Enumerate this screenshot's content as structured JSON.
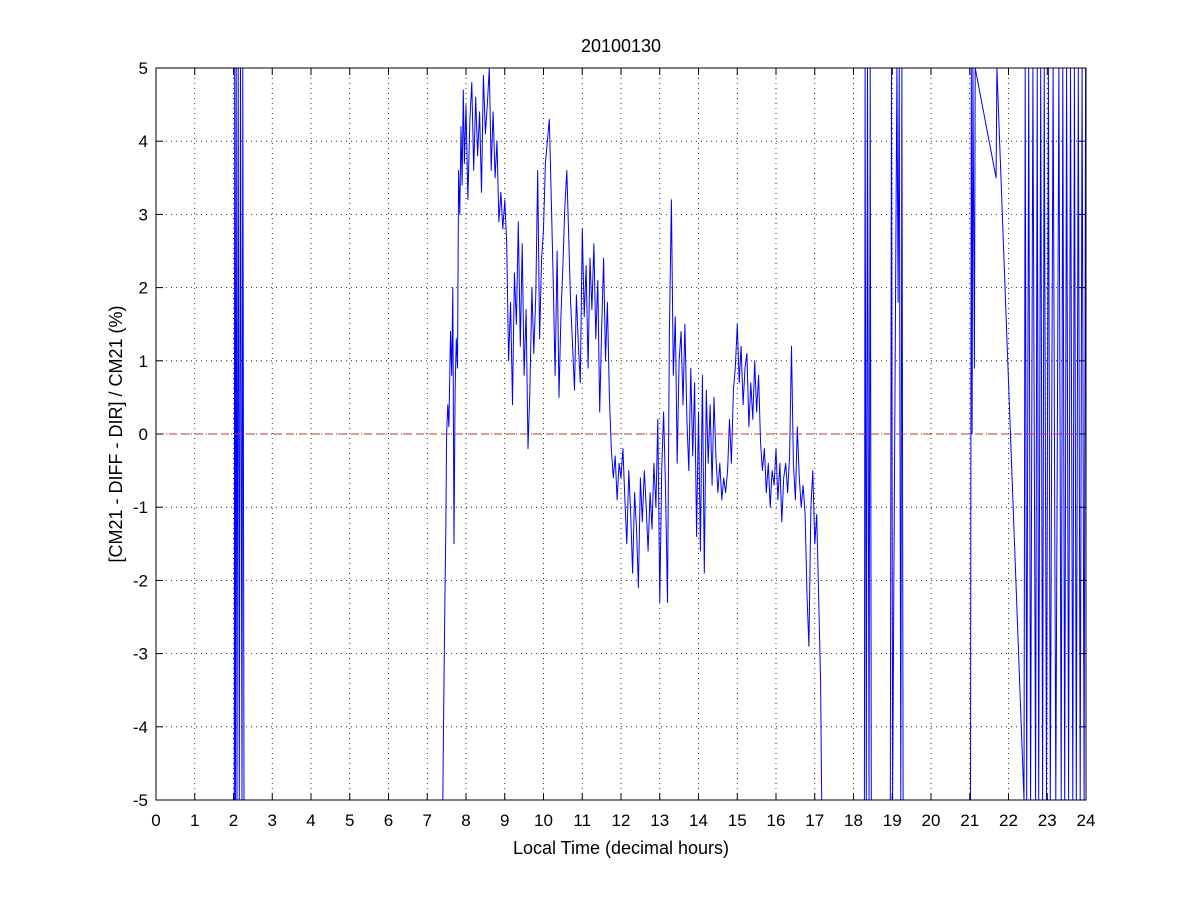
{
  "chart_data": {
    "type": "line",
    "title": "20100130",
    "xlabel": "Local Time (decimal hours)",
    "ylabel": "[CM21 - DIFF - DIR] / CM21 (%)",
    "xlim": [
      0,
      24
    ],
    "ylim": [
      -5,
      5
    ],
    "x_ticks": [
      0,
      1,
      2,
      3,
      4,
      5,
      6,
      7,
      8,
      9,
      10,
      11,
      12,
      13,
      14,
      15,
      16,
      17,
      18,
      19,
      20,
      21,
      22,
      23,
      24
    ],
    "y_ticks": [
      -5,
      -4,
      -3,
      -2,
      -1,
      0,
      1,
      2,
      3,
      4,
      5
    ],
    "grid": true,
    "reference_line": {
      "y": 0,
      "style": "dashed",
      "color": "#c0392b"
    },
    "series": [
      {
        "color": "#0000ff",
        "points": [
          [
            2.02,
            -5
          ],
          [
            2.03,
            5
          ],
          [
            2.05,
            -5
          ],
          [
            2.07,
            5
          ],
          [
            2.09,
            -5
          ],
          [
            2.12,
            5
          ],
          [
            2.15,
            -5
          ],
          [
            2.18,
            5
          ],
          [
            2.22,
            -5
          ],
          [
            2.24,
            5
          ],
          [
            2.27,
            -5
          ],
          [
            7.4,
            -5
          ],
          [
            7.42,
            -4.0
          ],
          [
            7.45,
            -2.5
          ],
          [
            7.48,
            -1.2
          ],
          [
            7.5,
            0.0
          ],
          [
            7.53,
            0.4
          ],
          [
            7.56,
            0.1
          ],
          [
            7.6,
            1.4
          ],
          [
            7.63,
            0.8
          ],
          [
            7.66,
            2.0
          ],
          [
            7.69,
            -1.5
          ],
          [
            7.72,
            0.6
          ],
          [
            7.75,
            1.3
          ],
          [
            7.78,
            0.9
          ],
          [
            7.81,
            3.6
          ],
          [
            7.84,
            3.0
          ],
          [
            7.87,
            4.2
          ],
          [
            7.9,
            3.4
          ],
          [
            7.93,
            4.7
          ],
          [
            7.96,
            3.7
          ],
          [
            8.0,
            4.5
          ],
          [
            8.05,
            3.2
          ],
          [
            8.1,
            4.3
          ],
          [
            8.15,
            4.8
          ],
          [
            8.2,
            3.6
          ],
          [
            8.25,
            4.6
          ],
          [
            8.3,
            3.8
          ],
          [
            8.35,
            4.4
          ],
          [
            8.4,
            3.3
          ],
          [
            8.45,
            4.9
          ],
          [
            8.5,
            4.1
          ],
          [
            8.55,
            4.5
          ],
          [
            8.6,
            5.0
          ],
          [
            8.65,
            3.6
          ],
          [
            8.7,
            4.4
          ],
          [
            8.75,
            3.5
          ],
          [
            8.8,
            4.0
          ],
          [
            8.85,
            2.9
          ],
          [
            8.9,
            3.3
          ],
          [
            8.95,
            2.8
          ],
          [
            9.0,
            3.2
          ],
          [
            9.05,
            2.6
          ],
          [
            9.1,
            1.0
          ],
          [
            9.15,
            1.8
          ],
          [
            9.2,
            0.4
          ],
          [
            9.25,
            2.2
          ],
          [
            9.3,
            1.5
          ],
          [
            9.35,
            2.9
          ],
          [
            9.4,
            1.2
          ],
          [
            9.45,
            2.6
          ],
          [
            9.5,
            0.8
          ],
          [
            9.55,
            1.7
          ],
          [
            9.6,
            -0.2
          ],
          [
            9.65,
            0.6
          ],
          [
            9.7,
            2.0
          ],
          [
            9.75,
            1.1
          ],
          [
            9.8,
            1.9
          ],
          [
            9.85,
            3.6
          ],
          [
            9.9,
            1.3
          ],
          [
            9.95,
            2.4
          ],
          [
            10.0,
            2.8
          ],
          [
            10.05,
            3.7
          ],
          [
            10.1,
            4.0
          ],
          [
            10.15,
            4.3
          ],
          [
            10.2,
            3.2
          ],
          [
            10.25,
            2.1
          ],
          [
            10.3,
            0.8
          ],
          [
            10.35,
            2.5
          ],
          [
            10.4,
            0.5
          ],
          [
            10.45,
            1.6
          ],
          [
            10.5,
            2.3
          ],
          [
            10.55,
            3.1
          ],
          [
            10.6,
            3.6
          ],
          [
            10.65,
            2.7
          ],
          [
            10.7,
            1.8
          ],
          [
            10.75,
            1.2
          ],
          [
            10.8,
            0.6
          ],
          [
            10.85,
            1.9
          ],
          [
            10.9,
            1.2
          ],
          [
            10.95,
            0.7
          ],
          [
            11.0,
            2.8
          ],
          [
            11.05,
            1.6
          ],
          [
            11.1,
            2.3
          ],
          [
            11.15,
            0.9
          ],
          [
            11.2,
            2.4
          ],
          [
            11.25,
            1.7
          ],
          [
            11.3,
            2.6
          ],
          [
            11.35,
            1.3
          ],
          [
            11.4,
            2.1
          ],
          [
            11.45,
            0.3
          ],
          [
            11.5,
            1.4
          ],
          [
            11.55,
            2.4
          ],
          [
            11.6,
            1.0
          ],
          [
            11.65,
            1.8
          ],
          [
            11.7,
            0.5
          ],
          [
            11.75,
            -0.2
          ],
          [
            11.8,
            -0.6
          ],
          [
            11.85,
            -0.3
          ],
          [
            11.9,
            -0.9
          ],
          [
            11.95,
            -0.4
          ],
          [
            12.0,
            -0.6
          ],
          [
            12.05,
            -0.2
          ],
          [
            12.1,
            -0.9
          ],
          [
            12.15,
            -1.5
          ],
          [
            12.2,
            -0.5
          ],
          [
            12.25,
            -1.1
          ],
          [
            12.3,
            -1.9
          ],
          [
            12.35,
            -0.8
          ],
          [
            12.4,
            -1.3
          ],
          [
            12.45,
            -2.1
          ],
          [
            12.5,
            -0.6
          ],
          [
            12.55,
            -1.2
          ],
          [
            12.6,
            -0.5
          ],
          [
            12.65,
            -1.0
          ],
          [
            12.7,
            -1.6
          ],
          [
            12.75,
            -0.8
          ],
          [
            12.8,
            -1.3
          ],
          [
            12.85,
            -0.4
          ],
          [
            12.9,
            -1.0
          ],
          [
            12.95,
            0.2
          ],
          [
            13.0,
            -2.3
          ],
          [
            13.05,
            -0.5
          ],
          [
            13.1,
            0.3
          ],
          [
            13.15,
            -0.8
          ],
          [
            13.2,
            -2.3
          ],
          [
            13.25,
            1.4
          ],
          [
            13.3,
            3.2
          ],
          [
            13.35,
            0.8
          ],
          [
            13.4,
            1.6
          ],
          [
            13.45,
            -0.4
          ],
          [
            13.5,
            1.0
          ],
          [
            13.55,
            1.4
          ],
          [
            13.6,
            0.4
          ],
          [
            13.65,
            1.5
          ],
          [
            13.7,
            0.2
          ],
          [
            13.75,
            -0.5
          ],
          [
            13.8,
            0.9
          ],
          [
            13.85,
            -0.3
          ],
          [
            13.9,
            0.7
          ],
          [
            13.95,
            -1.4
          ],
          [
            14.0,
            0.3
          ],
          [
            14.05,
            -1.6
          ],
          [
            14.1,
            0.8
          ],
          [
            14.15,
            -1.9
          ],
          [
            14.2,
            0.6
          ],
          [
            14.25,
            -0.4
          ],
          [
            14.3,
            0.4
          ],
          [
            14.35,
            -0.7
          ],
          [
            14.4,
            0.5
          ],
          [
            14.45,
            -0.3
          ],
          [
            14.5,
            -0.8
          ],
          [
            14.55,
            -0.4
          ],
          [
            14.6,
            -0.9
          ],
          [
            14.65,
            -0.6
          ],
          [
            14.7,
            -0.8
          ],
          [
            14.75,
            -0.5
          ],
          [
            14.8,
            0.2
          ],
          [
            14.85,
            -0.4
          ],
          [
            14.9,
            0.6
          ],
          [
            14.95,
            0.9
          ],
          [
            15.0,
            1.5
          ],
          [
            15.05,
            0.7
          ],
          [
            15.1,
            1.2
          ],
          [
            15.15,
            0.4
          ],
          [
            15.2,
            0.9
          ],
          [
            15.25,
            1.1
          ],
          [
            15.3,
            0.1
          ],
          [
            15.35,
            0.7
          ],
          [
            15.4,
            0.2
          ],
          [
            15.45,
            1.0
          ],
          [
            15.5,
            0.3
          ],
          [
            15.55,
            0.8
          ],
          [
            15.6,
            -0.1
          ],
          [
            15.65,
            -0.5
          ],
          [
            15.7,
            -0.2
          ],
          [
            15.75,
            -0.8
          ],
          [
            15.8,
            -0.4
          ],
          [
            15.85,
            -1.0
          ],
          [
            15.9,
            -0.5
          ],
          [
            15.95,
            -0.7
          ],
          [
            16.0,
            -0.2
          ],
          [
            16.05,
            -0.9
          ],
          [
            16.1,
            -0.4
          ],
          [
            16.15,
            -1.2
          ],
          [
            16.2,
            -0.6
          ],
          [
            16.25,
            -0.4
          ],
          [
            16.3,
            -0.8
          ],
          [
            16.35,
            -0.3
          ],
          [
            16.4,
            1.2
          ],
          [
            16.45,
            -0.4
          ],
          [
            16.5,
            -0.9
          ],
          [
            16.55,
            0.1
          ],
          [
            16.6,
            -0.6
          ],
          [
            16.65,
            -1.0
          ],
          [
            16.7,
            -0.7
          ],
          [
            16.75,
            -1.1
          ],
          [
            16.8,
            -2.2
          ],
          [
            16.85,
            -2.9
          ],
          [
            16.9,
            -1.0
          ],
          [
            16.95,
            -0.5
          ],
          [
            17.0,
            -1.5
          ],
          [
            17.05,
            -1.1
          ],
          [
            17.1,
            -2.2
          ],
          [
            17.15,
            -3.4
          ],
          [
            17.18,
            -5
          ],
          [
            18.28,
            -5
          ],
          [
            18.3,
            5
          ],
          [
            18.33,
            -5
          ],
          [
            18.36,
            5
          ],
          [
            18.4,
            -5
          ],
          [
            18.43,
            5
          ],
          [
            18.46,
            -5
          ],
          [
            18.95,
            -5
          ],
          [
            18.98,
            5
          ],
          [
            19.01,
            -5
          ],
          [
            19.12,
            5
          ],
          [
            19.15,
            1.8
          ],
          [
            19.18,
            5
          ],
          [
            19.22,
            -5
          ],
          [
            19.25,
            5
          ],
          [
            19.28,
            -5
          ],
          [
            21.02,
            -5
          ],
          [
            21.04,
            5
          ],
          [
            21.06,
            0.0
          ],
          [
            21.08,
            5
          ],
          [
            21.12,
            0.9
          ],
          [
            21.14,
            5
          ],
          [
            21.68,
            3.5
          ],
          [
            21.7,
            5
          ],
          [
            22.4,
            -5
          ],
          [
            22.43,
            5
          ],
          [
            22.47,
            -5
          ],
          [
            22.52,
            5
          ],
          [
            22.57,
            -5
          ],
          [
            22.63,
            5
          ],
          [
            22.7,
            -5
          ],
          [
            22.74,
            5
          ],
          [
            22.78,
            -5
          ],
          [
            22.83,
            5
          ],
          [
            22.88,
            -5
          ],
          [
            22.92,
            5
          ],
          [
            22.98,
            -5
          ],
          [
            23.03,
            5
          ],
          [
            23.08,
            -5
          ],
          [
            23.15,
            5
          ],
          [
            23.22,
            -5
          ],
          [
            23.3,
            5
          ],
          [
            23.36,
            -5
          ],
          [
            23.4,
            5
          ],
          [
            23.45,
            -5
          ],
          [
            23.5,
            5
          ],
          [
            23.55,
            -5
          ],
          [
            23.6,
            5
          ],
          [
            23.66,
            -5
          ],
          [
            23.7,
            5
          ],
          [
            23.75,
            -5
          ],
          [
            23.8,
            5
          ],
          [
            23.85,
            -5
          ],
          [
            23.9,
            5
          ],
          [
            23.95,
            -5
          ],
          [
            23.99,
            5
          ]
        ]
      }
    ]
  }
}
